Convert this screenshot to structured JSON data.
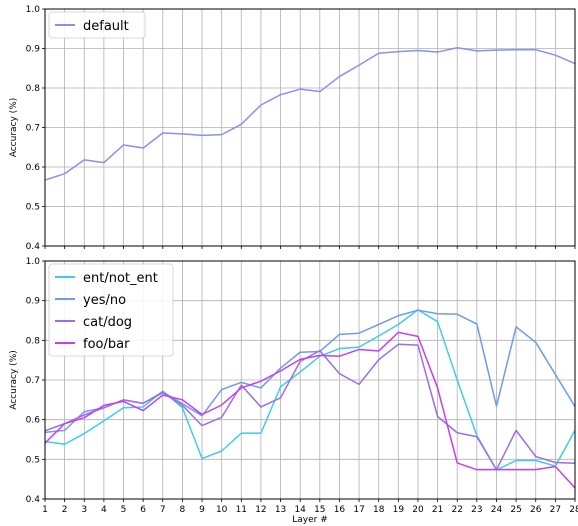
{
  "chart_data": [
    {
      "type": "line",
      "title": "",
      "xlabel": "",
      "ylabel": "Accuracy (%)",
      "xlim": [
        1,
        28
      ],
      "ylim": [
        0.4,
        1.0
      ],
      "yticks": [
        0.4,
        0.5,
        0.6,
        0.7,
        0.8,
        0.9,
        1.0
      ],
      "ytick_labels": [
        "0.4",
        "0.5",
        "0.6",
        "0.7",
        "0.8",
        "0.9",
        "1.0"
      ],
      "grid": true,
      "legend": "upper-left",
      "x": [
        1,
        2,
        3,
        4,
        5,
        6,
        7,
        8,
        9,
        10,
        11,
        12,
        13,
        14,
        15,
        16,
        17,
        18,
        19,
        20,
        21,
        22,
        23,
        24,
        25,
        26,
        27,
        28
      ],
      "series": [
        {
          "name": "default",
          "color": "#8a8ff0",
          "values": [
            0.567,
            0.583,
            0.618,
            0.611,
            0.656,
            0.648,
            0.686,
            0.684,
            0.68,
            0.682,
            0.708,
            0.757,
            0.783,
            0.797,
            0.791,
            0.829,
            0.858,
            0.888,
            0.892,
            0.895,
            0.891,
            0.902,
            0.894,
            0.896,
            0.897,
            0.897,
            0.883,
            0.862
          ]
        }
      ]
    },
    {
      "type": "line",
      "title": "",
      "xlabel": "Layer #",
      "ylabel": "Accuracy (%)",
      "xlim": [
        1,
        28
      ],
      "ylim": [
        0.4,
        1.0
      ],
      "yticks": [
        0.4,
        0.5,
        0.6,
        0.7,
        0.8,
        0.9,
        1.0
      ],
      "ytick_labels": [
        "0.4",
        "0.5",
        "0.6",
        "0.7",
        "0.8",
        "0.9",
        "1.0"
      ],
      "xtick_labels": [
        "1",
        "2",
        "3",
        "4",
        "5",
        "6",
        "7",
        "8",
        "9",
        "10",
        "11",
        "12",
        "13",
        "14",
        "15",
        "16",
        "17",
        "18",
        "19",
        "20",
        "21",
        "22",
        "23",
        "24",
        "25",
        "26",
        "27",
        "28"
      ],
      "grid": true,
      "legend": "upper-left",
      "x": [
        1,
        2,
        3,
        4,
        5,
        6,
        7,
        8,
        9,
        10,
        11,
        12,
        13,
        14,
        15,
        16,
        17,
        18,
        19,
        20,
        21,
        22,
        23,
        24,
        25,
        26,
        27,
        28
      ],
      "series": [
        {
          "name": "ent/not_ent",
          "color": "#3fcde6",
          "values": [
            0.545,
            0.538,
            0.565,
            0.597,
            0.63,
            0.632,
            0.672,
            0.63,
            0.502,
            0.521,
            0.566,
            0.566,
            0.683,
            0.72,
            0.76,
            0.779,
            0.783,
            0.811,
            0.84,
            0.877,
            0.847,
            0.7,
            0.56,
            0.473,
            0.497,
            0.497,
            0.483,
            0.573
          ]
        },
        {
          "name": "yes/no",
          "color": "#6e9bea",
          "values": [
            0.568,
            0.573,
            0.62,
            0.63,
            0.65,
            0.641,
            0.67,
            0.64,
            0.61,
            0.676,
            0.694,
            0.68,
            0.73,
            0.77,
            0.772,
            0.815,
            0.818,
            0.84,
            0.862,
            0.876,
            0.867,
            0.866,
            0.841,
            0.634,
            0.834,
            0.795,
            0.714,
            0.633
          ]
        },
        {
          "name": "cat/dog",
          "color": "#9a6ee8",
          "values": [
            0.572,
            0.59,
            0.612,
            0.63,
            0.65,
            0.641,
            0.668,
            0.636,
            0.585,
            0.606,
            0.687,
            0.632,
            0.655,
            0.747,
            0.774,
            0.716,
            0.689,
            0.751,
            0.79,
            0.788,
            0.608,
            0.567,
            0.557,
            0.474,
            0.573,
            0.507,
            0.492,
            0.49
          ]
        },
        {
          "name": "foo/bar",
          "color": "#c43ef5",
          "values": [
            0.541,
            0.59,
            0.605,
            0.636,
            0.646,
            0.623,
            0.662,
            0.65,
            0.613,
            0.637,
            0.68,
            0.697,
            0.723,
            0.752,
            0.762,
            0.76,
            0.777,
            0.773,
            0.82,
            0.81,
            0.68,
            0.491,
            0.474,
            0.474,
            0.474,
            0.474,
            0.482,
            0.428
          ]
        }
      ]
    }
  ]
}
